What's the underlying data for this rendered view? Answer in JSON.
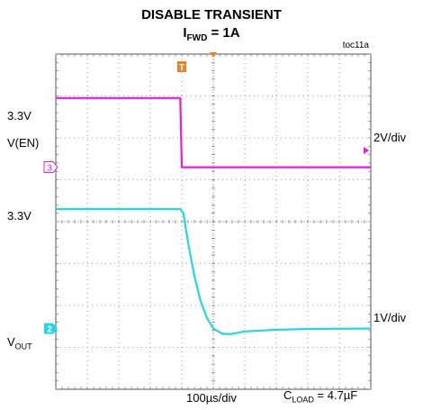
{
  "chart_data": {
    "type": "line",
    "title": "DISABLE TRANSIENT",
    "subtitle_main": "I",
    "subtitle_sub": "FWD",
    "subtitle_rest": " = 1A",
    "figure_id": "toc11a",
    "xlabel": "100µs/div",
    "note_main": "C",
    "note_sub": "LOAD",
    "note_rest": " = 4.7µF",
    "grid": true,
    "x_divisions": 10,
    "y_divisions": 8,
    "xlim": [
      0,
      10
    ],
    "ylim": [
      0,
      8
    ],
    "trigger_marker": "T",
    "series": [
      {
        "name": "V(EN)",
        "level_label": "3.3V",
        "scale_label": "2V/div",
        "channel": "3",
        "color": "#e020e0",
        "x": [
          0,
          3.95,
          4.0,
          10
        ],
        "y": [
          6.95,
          6.95,
          5.3,
          5.3
        ]
      },
      {
        "name_main": "V",
        "name_sub": "OUT",
        "level_label": "3.3V",
        "scale_label": "1V/div",
        "channel": "2",
        "color": "#22d8e0",
        "x": [
          0,
          3.95,
          4.05,
          4.2,
          4.4,
          4.6,
          4.8,
          5.0,
          5.3,
          5.6,
          6.0,
          7.0,
          8.0,
          10
        ],
        "y": [
          4.3,
          4.3,
          4.2,
          3.5,
          2.7,
          2.1,
          1.7,
          1.45,
          1.32,
          1.32,
          1.38,
          1.42,
          1.44,
          1.45
        ]
      }
    ]
  }
}
